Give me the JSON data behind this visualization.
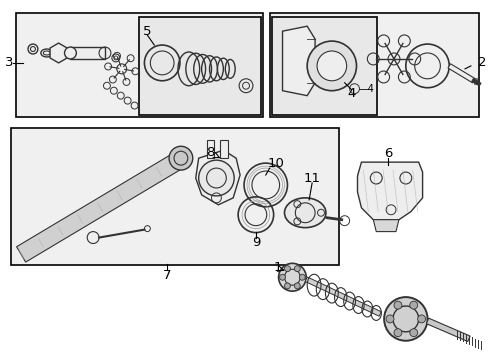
{
  "bg_color": "#ffffff",
  "box_color": "#000000",
  "lc": "#333333",
  "fig_width": 4.89,
  "fig_height": 3.6,
  "dpi": 100
}
